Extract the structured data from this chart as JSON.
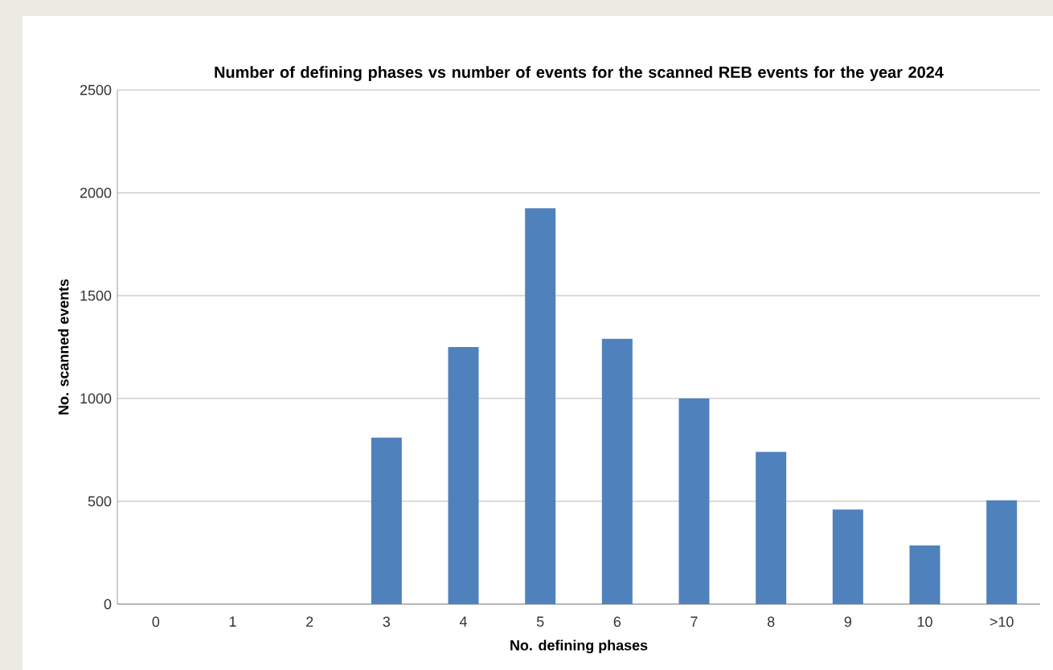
{
  "chart_data": {
    "type": "bar",
    "title": "Number of defining phases vs number of events for the  scanned REB events for the year 2024",
    "xlabel": "No. defining phases",
    "ylabel": "No. scanned events",
    "categories": [
      "0",
      "1",
      "2",
      "3",
      "4",
      "5",
      "6",
      "7",
      "8",
      "9",
      "10",
      ">10"
    ],
    "values": [
      0,
      0,
      0,
      810,
      1250,
      1925,
      1290,
      1000,
      740,
      460,
      285,
      505
    ],
    "color": "#4f81bd",
    "ylim": [
      0,
      2500
    ],
    "yticks": [
      0,
      500,
      1000,
      1500,
      2000,
      2500
    ],
    "grid": "y"
  }
}
